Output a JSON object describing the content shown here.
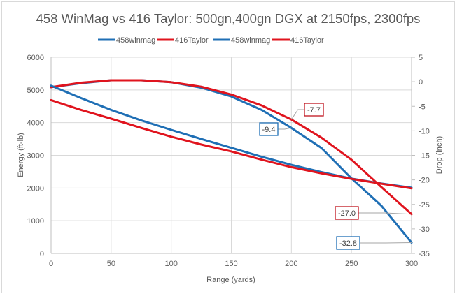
{
  "chart_data": {
    "type": "line",
    "title": "458 WinMag vs 416 Taylor: 500gn,400gn DGX at 2150fps, 2300fps",
    "xlabel": "Range (yards)",
    "ylabel": "Energy (ft-lb)",
    "y2label": "Drop (inch)",
    "xlim": [
      0,
      300
    ],
    "ylim": [
      0,
      6000
    ],
    "y2lim": [
      -35,
      5
    ],
    "x_ticks": [
      "0",
      "50",
      "100",
      "150",
      "200",
      "250",
      "300"
    ],
    "y_ticks": [
      "0",
      "1000",
      "2000",
      "3000",
      "4000",
      "5000",
      "6000"
    ],
    "y2_ticks": [
      "5",
      "0",
      "-5",
      "-10",
      "-15",
      "-20",
      "-25",
      "-30",
      "-35"
    ],
    "grid": true,
    "legend_position": "top",
    "x": [
      0,
      25,
      50,
      75,
      100,
      125,
      150,
      175,
      200,
      225,
      250,
      275,
      300
    ],
    "series": [
      {
        "name": "458winmag",
        "axis": "energy",
        "color": "#1f6fb5",
        "values": [
          5130,
          4750,
          4390,
          4070,
          3780,
          3500,
          3230,
          2960,
          2710,
          2490,
          2290,
          2140,
          2010
        ]
      },
      {
        "name": "416Taylor",
        "axis": "energy",
        "color": "#e0141e",
        "values": [
          4690,
          4390,
          4120,
          3840,
          3570,
          3330,
          3120,
          2870,
          2640,
          2450,
          2280,
          2130,
          1990
        ]
      },
      {
        "name": "458winmag",
        "axis": "drop",
        "color": "#1f6fb5",
        "values": [
          -1.1,
          -0.3,
          0.3,
          0.3,
          -0.1,
          -1.2,
          -3.0,
          -5.7,
          -9.4,
          -13.5,
          -19.7,
          -25.3,
          -32.8
        ]
      },
      {
        "name": "416Taylor",
        "axis": "drop",
        "color": "#e0141e",
        "values": [
          -1.1,
          -0.2,
          0.3,
          0.3,
          -0.1,
          -1.0,
          -2.6,
          -4.8,
          -7.7,
          -11.4,
          -15.9,
          -21.5,
          -27.0
        ]
      }
    ],
    "annotations": [
      {
        "text": "-9.4",
        "series": 2,
        "x": 200,
        "color": "#1f6fb5"
      },
      {
        "text": "-7.7",
        "series": 3,
        "x": 200,
        "color": "#c0141e"
      },
      {
        "text": "-27.0",
        "series": 3,
        "x": 300,
        "color": "#c0141e"
      },
      {
        "text": "-32.8",
        "series": 2,
        "x": 300,
        "color": "#1f6fb5"
      }
    ]
  }
}
